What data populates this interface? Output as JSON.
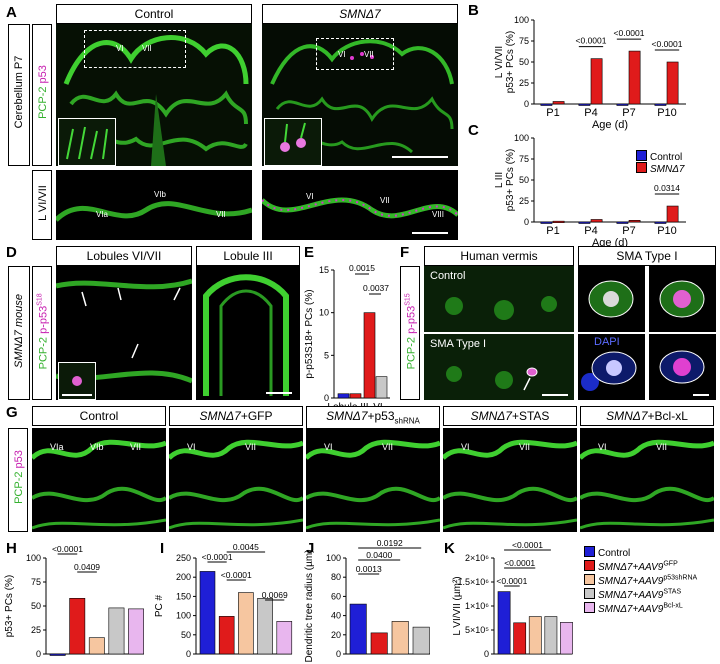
{
  "panels": {
    "A": {
      "letter": "A",
      "hdr_control": "Control",
      "hdr_smn": "SMNΔ7",
      "side_cereb": "Cerebellum P7",
      "side_stain_pcp": "PCP-2",
      "side_stain_p53": "p53",
      "side_lobule": "L VI/VII",
      "labels_top_control": [
        "VI",
        "VII"
      ],
      "labels_top_smn": [
        "VI",
        "VII"
      ],
      "labels_bottom_control": [
        "VIa",
        "VIb",
        "VII"
      ],
      "labels_bottom_smn": [
        "VI",
        "VII",
        "VIII"
      ]
    },
    "B": {
      "letter": "B"
    },
    "C": {
      "letter": "C"
    },
    "D": {
      "letter": "D",
      "hdr_1": "Lobules VI/VII",
      "hdr_2": "Lobule III",
      "side_mouse": "SMNΔ7 mouse",
      "side_pcp": "PCP-2",
      "side_pp53": "p-p53",
      "side_pp53_sup": "S18"
    },
    "E": {
      "letter": "E"
    },
    "F": {
      "letter": "F",
      "hdr_1": "Human vermis",
      "hdr_2": "SMA Type I",
      "side_pcp": "PCP-2",
      "side_pp53": "p-p53",
      "side_pp53_sup": "S15",
      "label_control": "Control",
      "label_sma": "SMA Type I",
      "label_dapi": "DAPI"
    },
    "G": {
      "letter": "G",
      "headers": [
        "Control",
        "SMNΔ7+GFP",
        "SMNΔ7+p53",
        "SMNΔ7+STAS",
        "SMNΔ7+Bcl-xL"
      ],
      "p53_sub": "shRNA",
      "side_pcp": "PCP-2",
      "side_p53": "p53",
      "lobule_labels": [
        [
          "VIa",
          "VIb",
          "VII"
        ],
        [
          "VI",
          "VII"
        ],
        [
          "VI",
          "VII"
        ],
        [
          "VI",
          "VII"
        ],
        [
          "VI",
          "VII"
        ]
      ]
    },
    "H": {
      "letter": "H"
    },
    "I": {
      "letter": "I"
    },
    "J": {
      "letter": "J"
    },
    "K": {
      "letter": "K"
    }
  },
  "legend_BC": {
    "items": [
      {
        "label": "Control",
        "color": "#1f1fd6"
      },
      {
        "label": "SMNΔ7",
        "color": "#e01b1b"
      }
    ]
  },
  "legend_HK": {
    "items": [
      {
        "label": "Control",
        "color": "#1f1fd6"
      },
      {
        "label": "SMNΔ7+AAV9",
        "sup": "GFP",
        "color": "#e01b1b"
      },
      {
        "label": "SMNΔ7+AAV9",
        "sup": "p53shRNA",
        "color": "#f6c6a0"
      },
      {
        "label": "SMNΔ7+AAV9",
        "sup": "STAS",
        "color": "#c8c8c8"
      },
      {
        "label": "SMNΔ7+AAV9",
        "sup": "Bcl-xL",
        "color": "#e8b6ee"
      }
    ]
  },
  "chart_data": [
    {
      "id": "B",
      "type": "bar",
      "ylabel": "L VI/VII p53+ PCs (%)",
      "xlabel": "Age (d)",
      "categories": [
        "P1",
        "P4",
        "P7",
        "P10"
      ],
      "ylim": [
        0,
        100
      ],
      "yticks": [
        0,
        25,
        50,
        75,
        100
      ],
      "series": [
        {
          "name": "Control",
          "values": [
            0,
            0,
            0,
            0
          ],
          "color": "#1f1fd6"
        },
        {
          "name": "SMNΔ7",
          "values": [
            3,
            54,
            63,
            50
          ],
          "color": "#e01b1b"
        }
      ],
      "pvalues": [
        {
          "category": "P4",
          "text": "<0.0001"
        },
        {
          "category": "P7",
          "text": "<0.0001"
        },
        {
          "category": "P10",
          "text": "<0.0001"
        }
      ]
    },
    {
      "id": "C",
      "type": "bar",
      "ylabel": "L III p53+ PCs (%)",
      "xlabel": "Age (d)",
      "categories": [
        "P1",
        "P4",
        "P7",
        "P10"
      ],
      "ylim": [
        0,
        100
      ],
      "yticks": [
        0,
        25,
        50,
        75,
        100
      ],
      "series": [
        {
          "name": "Control",
          "values": [
            0,
            0,
            0,
            0
          ],
          "color": "#1f1fd6"
        },
        {
          "name": "SMNΔ7",
          "values": [
            1,
            3,
            2,
            19
          ],
          "color": "#e01b1b"
        }
      ],
      "pvalues": [
        {
          "category": "P10",
          "text": "0.0314"
        }
      ]
    },
    {
      "id": "E",
      "type": "bar",
      "ylabel": "p-p53S18+ PCs (%)",
      "categories": [
        "Lobule III",
        "VI"
      ],
      "ylim": [
        0,
        15
      ],
      "yticks": [
        0,
        5,
        10,
        15
      ],
      "bars": [
        {
          "category": "Lobule III",
          "name": "Control",
          "value": 0.5,
          "color": "#1f1fd6"
        },
        {
          "category": "Lobule III",
          "name": "SMNΔ7",
          "value": 0.5,
          "color": "#e01b1b"
        },
        {
          "category": "VI",
          "name": "SMNΔ7",
          "value": 10,
          "color": "#e01b1b"
        },
        {
          "category": "VI",
          "name": "Control",
          "value": 2.5,
          "color": "#c8c8c8"
        }
      ],
      "pvalues": [
        "0.0015",
        "0.0037"
      ]
    },
    {
      "id": "H",
      "type": "bar",
      "ylabel": "p53+ PCs (%)",
      "ylim": [
        0,
        100
      ],
      "yticks": [
        0,
        25,
        50,
        75,
        100
      ],
      "groups": [
        "Control",
        "SMNΔ7+AAV9GFP",
        "SMNΔ7+AAV9p53shRNA",
        "SMNΔ7+AAV9STAS",
        "SMNΔ7+AAV9Bcl-xL"
      ],
      "values": [
        0,
        58,
        17,
        48,
        47
      ],
      "pvalues": [
        "<0.0001",
        "0.0409"
      ]
    },
    {
      "id": "I",
      "type": "bar",
      "ylabel": "PC #",
      "ylim": [
        0,
        250
      ],
      "yticks": [
        0,
        50,
        100,
        150,
        200,
        250
      ],
      "groups": [
        "Control",
        "SMNΔ7+AAV9GFP",
        "SMNΔ7+AAV9p53shRNA",
        "SMNΔ7+AAV9STAS",
        "SMNΔ7+AAV9Bcl-xL"
      ],
      "values": [
        215,
        98,
        160,
        145,
        85
      ],
      "pvalues": [
        "<0.0001",
        "0.0045",
        "<0.0001",
        "0.0069"
      ]
    },
    {
      "id": "J",
      "type": "bar",
      "ylabel": "Dendritic tree radius (µm)",
      "ylim": [
        0,
        100
      ],
      "yticks": [
        0,
        20,
        40,
        60,
        80,
        100
      ],
      "groups": [
        "Control",
        "SMNΔ7+AAV9GFP",
        "SMNΔ7+AAV9p53shRNA",
        "SMNΔ7+AAV9STAS"
      ],
      "values": [
        52,
        22,
        34,
        28
      ],
      "pvalues": [
        "0.0013",
        "0.0400",
        "0.0192"
      ]
    },
    {
      "id": "K",
      "type": "bar",
      "ylabel": "L VI/VII (µm²)",
      "ylim": [
        0,
        2000000
      ],
      "yticks": [
        0,
        500000,
        1000000,
        1500000,
        2000000
      ],
      "ytick_labels": [
        "0",
        "5×10⁵",
        "1×10⁶",
        "1.5×10⁶",
        "2×10⁶"
      ],
      "groups": [
        "Control",
        "SMNΔ7+AAV9GFP",
        "SMNΔ7+AAV9p53shRNA",
        "SMNΔ7+AAV9STAS",
        "SMNΔ7+AAV9Bcl-xL"
      ],
      "values": [
        1300000,
        650000,
        780000,
        780000,
        660000
      ],
      "pvalues": [
        "<0.0001",
        "<0.0001",
        "<0.0001"
      ]
    }
  ]
}
